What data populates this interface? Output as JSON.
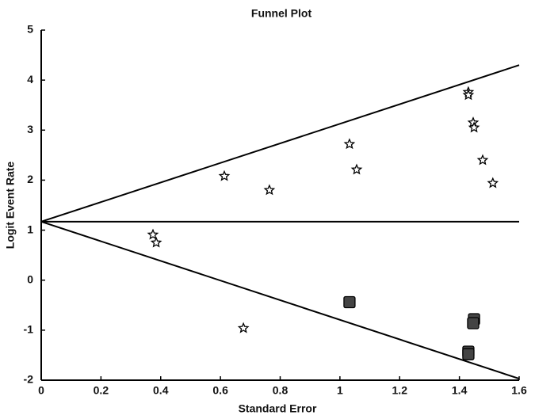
{
  "chart_data": {
    "type": "scatter",
    "title": "Funnel Plot",
    "x_label": "Standard Error",
    "y_label": "Logit Event Rate",
    "xlim": [
      0,
      1.6
    ],
    "ylim": [
      -2,
      5
    ],
    "xticks": [
      0,
      0.2,
      0.4,
      0.6,
      0.8,
      1,
      1.2,
      1.4,
      1.6
    ],
    "yticks": [
      -2,
      -1,
      0,
      1,
      2,
      3,
      4,
      5
    ],
    "series": [
      {
        "marker": "star",
        "color": "#ffffff",
        "x": [
          0.613,
          0.764,
          1.032,
          1.056,
          1.43,
          1.43,
          1.446,
          1.449,
          1.478,
          1.512,
          0.374,
          0.385,
          0.677
        ],
        "values": [
          2.08,
          1.8,
          2.72,
          2.21,
          3.76,
          3.7,
          3.15,
          3.05,
          2.4,
          1.94,
          0.91,
          0.75,
          -0.96
        ]
      },
      {
        "marker": "square",
        "color": "#444444",
        "x": [
          1.032,
          1.449,
          1.446,
          1.43,
          1.43
        ],
        "values": [
          -0.44,
          -0.78,
          -0.86,
          -1.43,
          -1.48
        ]
      }
    ],
    "lines": [
      {
        "x": [
          0,
          1.6
        ],
        "y": [
          1.17,
          4.3
        ]
      },
      {
        "x": [
          0,
          1.6
        ],
        "y": [
          1.17,
          1.17
        ]
      },
      {
        "x": [
          0,
          1.6
        ],
        "y": [
          1.17,
          -1.97
        ]
      }
    ]
  }
}
